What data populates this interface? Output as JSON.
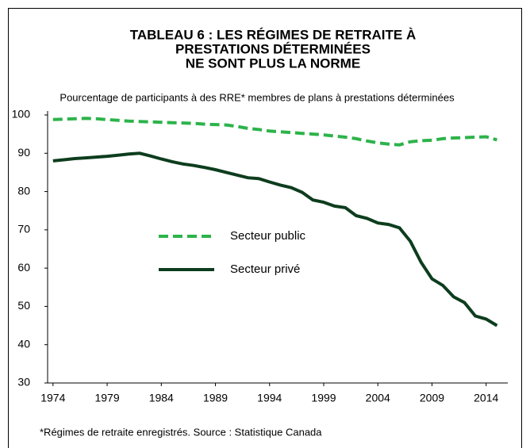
{
  "chart_data": {
    "type": "line",
    "title": [
      "TABLEAU 6 : LES RÉGIMES DE RETRAITE À",
      "PRESTATIONS DÉTERMINÉES",
      "NE SONT PLUS LA NORME"
    ],
    "subtitle": "Pourcentage de participants à des RRE*  membres de plans à prestations déterminées",
    "note": "*Régimes de retraite enregistrés. Source : Statistique Canada",
    "x": [
      1974,
      1975,
      1976,
      1977,
      1978,
      1979,
      1980,
      1981,
      1982,
      1983,
      1984,
      1985,
      1986,
      1987,
      1988,
      1989,
      1990,
      1991,
      1992,
      1993,
      1994,
      1995,
      1996,
      1997,
      1998,
      1999,
      2000,
      2001,
      2002,
      2003,
      2004,
      2005,
      2006,
      2007,
      2008,
      2009,
      2010,
      2011,
      2012,
      2013,
      2014,
      2015
    ],
    "series": [
      {
        "name": "Secteur public",
        "color": "#2db34a",
        "dashed": true,
        "values": [
          98.8,
          98.9,
          99,
          99.1,
          99,
          98.8,
          98.6,
          98.4,
          98.3,
          98.2,
          98.1,
          98,
          97.9,
          97.8,
          97.6,
          97.5,
          97.4,
          97,
          96.5,
          96.2,
          95.8,
          95.6,
          95.4,
          95.2,
          95,
          94.8,
          94.5,
          94.2,
          93.8,
          93.2,
          92.7,
          92.4,
          92.2,
          93,
          93.3,
          93.4,
          93.8,
          94,
          94.1,
          94.2,
          94.3,
          93.5
        ]
      },
      {
        "name": "Secteur privé",
        "color": "#0d3d1e",
        "dashed": false,
        "values": [
          88,
          88.3,
          88.6,
          88.8,
          89,
          89.2,
          89.5,
          89.8,
          90,
          89.3,
          88.5,
          87.8,
          87.2,
          86.8,
          86.3,
          85.7,
          85,
          84.3,
          83.6,
          83.4,
          82.5,
          81.7,
          81,
          79.8,
          77.8,
          77.2,
          76.2,
          75.8,
          73.7,
          73,
          71.8,
          71.4,
          70.5,
          67,
          61.5,
          57.2,
          55.5,
          52.5,
          51,
          47.5,
          46.7,
          45
        ]
      }
    ],
    "xlim": [
      1973.5,
      2016
    ],
    "xticks": [
      1974,
      1979,
      1984,
      1989,
      1994,
      1999,
      2004,
      2009,
      2014
    ],
    "ylim": [
      30,
      100
    ],
    "yticks": [
      30,
      40,
      50,
      60,
      70,
      80,
      90,
      100
    ],
    "grid": false,
    "legend": "center"
  }
}
